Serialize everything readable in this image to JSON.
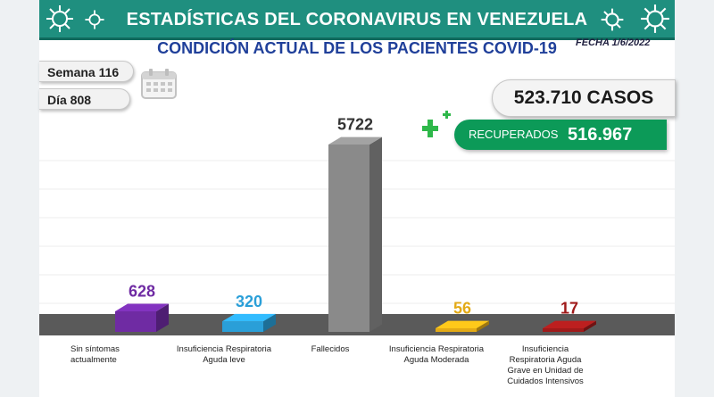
{
  "header": {
    "title": "ESTADÍSTICAS DEL CORONAVIRUS EN VENEZUELA",
    "subtitle": "CONDICIÓN ACTUAL DE LOS PACIENTES COVID-19",
    "date": "FECHA 1/6/2022"
  },
  "info": {
    "week": "Semana 116",
    "day": "Día 808"
  },
  "totals": {
    "cases": "523.710 CASOS",
    "recovered_label": "RECUPERADOS",
    "recovered_value": "516.967"
  },
  "colors": {
    "banner": "#1f8f7f",
    "subtitle": "#20409a",
    "recovered": "#0c9a58",
    "plus": "#2eb84a"
  },
  "icons": [
    "virus-icon",
    "calendar-icon",
    "plus-icon"
  ],
  "chart_data": {
    "type": "bar",
    "categories": [
      "Sin síntomas actualmente",
      "Insuficiencia Respiratoria Aguda leve",
      "Fallecidos",
      "Insuficiencia Respiratoria Aguda Moderada",
      "Insuficiencia Respiratoria Aguda Grave en Unidad de Cuidados Intensivos"
    ],
    "values": [
      628,
      320,
      5722,
      56,
      17
    ],
    "value_labels": [
      "628",
      "320",
      "5722",
      "56",
      "17"
    ],
    "colors": [
      "#6f2ba3",
      "#2a9fd8",
      "#8a8a8a",
      "#e3aa16",
      "#a01a1a"
    ],
    "label_colors": [
      "#6f2ba3",
      "#2a9fd8",
      "#333333",
      "#e3aa16",
      "#a01a1a"
    ],
    "grid": true,
    "title": "",
    "xlabel": "",
    "ylabel": ""
  }
}
